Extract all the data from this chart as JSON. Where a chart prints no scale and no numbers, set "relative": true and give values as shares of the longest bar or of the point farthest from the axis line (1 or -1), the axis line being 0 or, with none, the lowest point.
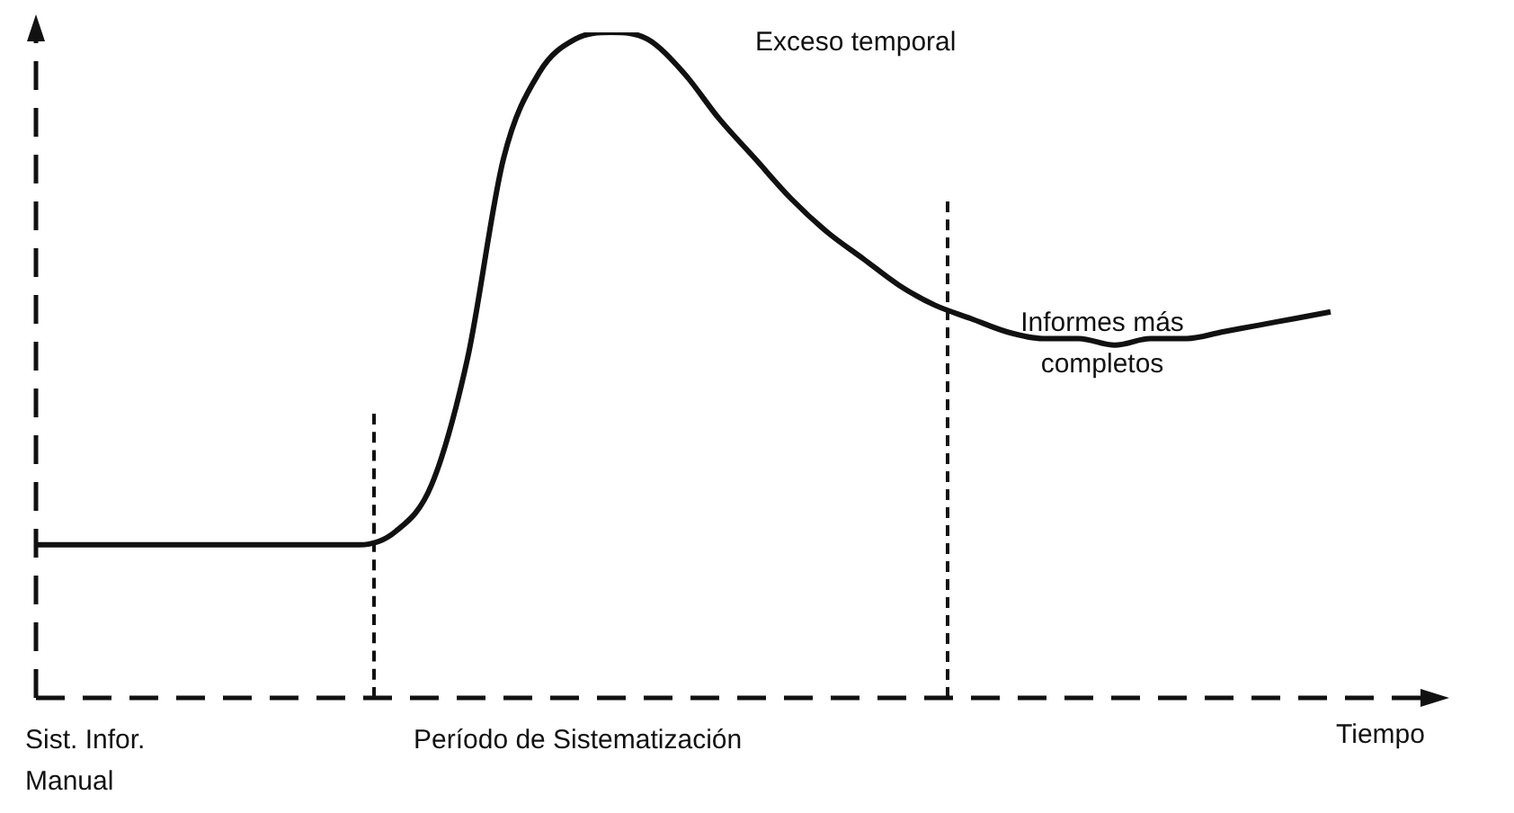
{
  "chart_data": {
    "type": "line",
    "relative": true,
    "xlabel": "Tiempo",
    "categories": [
      null,
      null,
      null,
      null,
      null,
      null,
      null,
      null,
      null,
      null,
      null,
      null,
      null,
      null,
      null,
      null,
      null,
      null,
      null,
      null,
      null,
      null,
      null,
      null,
      null,
      null,
      null,
      null,
      null,
      null,
      null,
      null,
      null,
      null,
      null,
      null,
      null
    ],
    "series": [
      {
        "color": "#111111",
        "values": [
          0.23,
          0.23,
          0.23,
          0.23,
          0.23,
          0.23,
          0.23,
          0.23,
          0.23,
          0.23,
          0.25,
          0.32,
          0.51,
          0.81,
          0.94,
          0.99,
          1,
          0.99,
          0.94,
          0.87,
          0.81,
          0.75,
          0.7,
          0.66,
          0.62,
          0.59,
          0.57,
          0.55,
          0.54,
          0.54,
          0.53,
          0.54,
          0.54,
          0.55,
          0.56,
          0.57,
          0.58
        ]
      }
    ],
    "annotations": [
      "Exceso temporal",
      "Informes más completos",
      "Sist. Infor. Manual",
      "Período de Sistematización"
    ],
    "legend": false,
    "tick_labels": false,
    "marker": "none",
    "line_style": "solid"
  }
}
